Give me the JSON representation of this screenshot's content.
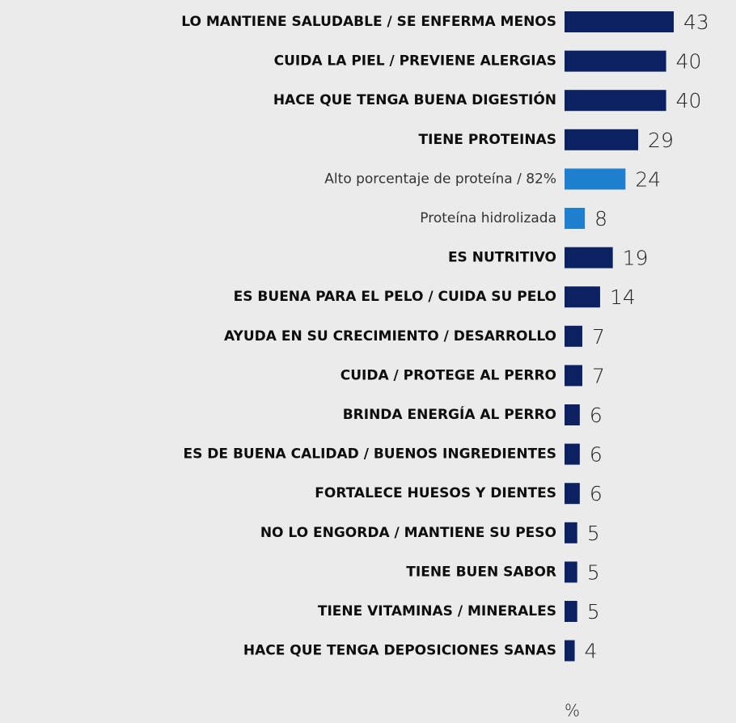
{
  "chart_data": {
    "type": "bar",
    "orientation": "horizontal",
    "categories": [
      "LO MANTIENE SALUDABLE / SE ENFERMA MENOS",
      "CUIDA LA PIEL / PREVIENE ALERGIAS",
      "HACE QUE TENGA BUENA DIGESTIÓN",
      "TIENE PROTEINAS",
      "Alto porcentaje de proteína / 82%",
      "Proteína hidrolizada",
      "ES NUTRITIVO",
      "ES BUENA PARA EL PELO / CUIDA SU PELO",
      "AYUDA EN SU CRECIMIENTO / DESARROLLO",
      "CUIDA / PROTEGE AL PERRO",
      "BRINDA ENERGÍA AL PERRO",
      "ES DE BUENA CALIDAD / BUENOS INGREDIENTES",
      "FORTALECE HUESOS Y DIENTES",
      "NO LO ENGORDA / MANTIENE SU PESO",
      "TIENE BUEN SABOR",
      "TIENE VITAMINAS / MINERALES",
      "HACE QUE TENGA DEPOSICIONES SANAS"
    ],
    "values": [
      43,
      40,
      40,
      29,
      24,
      8,
      19,
      14,
      7,
      7,
      6,
      6,
      6,
      5,
      5,
      5,
      4
    ],
    "colors": [
      "#0c2161",
      "#0c2161",
      "#0c2161",
      "#0c2161",
      "#1f80cf",
      "#1f80cf",
      "#0c2161",
      "#0c2161",
      "#0c2161",
      "#0c2161",
      "#0c2161",
      "#0c2161",
      "#0c2161",
      "#0c2161",
      "#0c2161",
      "#0c2161",
      "#0c2161"
    ],
    "x_label": "%"
  }
}
